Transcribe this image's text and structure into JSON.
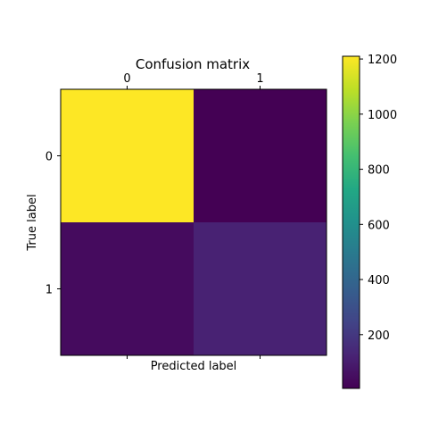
{
  "chart_data": {
    "type": "heatmap",
    "title": "Confusion matrix",
    "xlabel": "Predicted label",
    "ylabel": "True label",
    "x_categories": [
      "0",
      "1"
    ],
    "y_categories": [
      "0",
      "1"
    ],
    "values": [
      [
        1210,
        5
      ],
      [
        40,
        120
      ]
    ],
    "colormap": "viridis",
    "colorbar": {
      "min": 5,
      "max": 1210,
      "ticks": [
        200,
        400,
        600,
        800,
        1000,
        1200
      ]
    },
    "grid": false,
    "x_tick_position": "top"
  }
}
